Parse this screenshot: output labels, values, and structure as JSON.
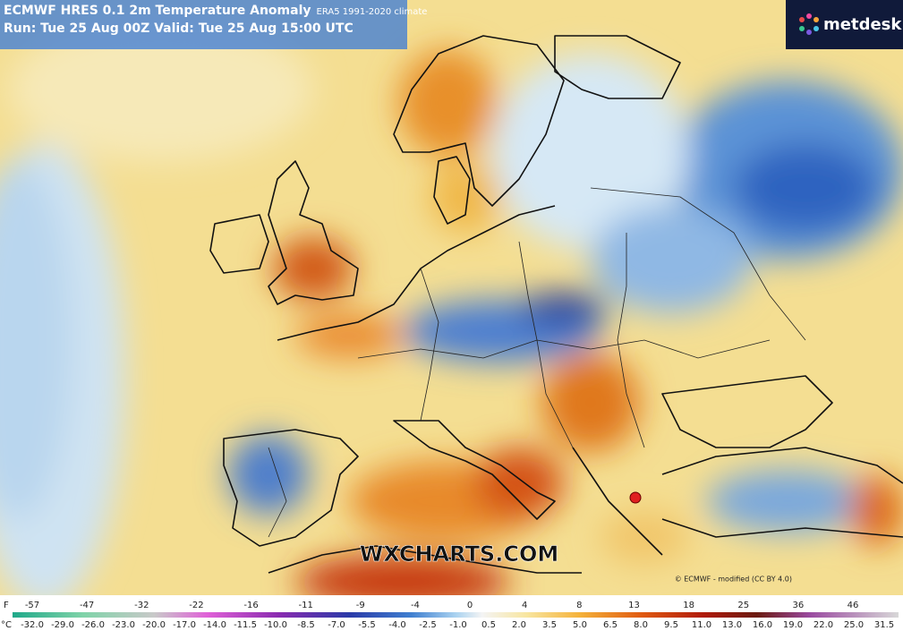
{
  "header": {
    "title": "ECMWF HRES 0.1 2m Temperature Anomaly",
    "climate": "ERA5 1991-2020 climate",
    "run": "Run: Tue 25 Aug 00Z Valid: Tue 25 Aug 15:00 UTC"
  },
  "logo": "metdesk",
  "watermark": "WXCHARTS.COM",
  "credit": "© ECMWF - modified (CC BY 4.0)",
  "colorbar": {
    "f_unit": "F",
    "f_labels": [
      "-57",
      "-47",
      "-32",
      "-22",
      "-16",
      "-11",
      "-9",
      "-4",
      "0",
      "4",
      "8",
      "13",
      "18",
      "25",
      "36",
      "46"
    ],
    "c_unit": "°C",
    "c_labels": [
      "-32.0",
      "-29.0",
      "-26.0",
      "-23.0",
      "-20.0",
      "-17.0",
      "-14.0",
      "-11.5",
      "-10.0",
      "-8.5",
      "-7.0",
      "-5.5",
      "-4.0",
      "-2.5",
      "-1.0",
      "0.5",
      "2.0",
      "3.5",
      "5.0",
      "6.5",
      "8.0",
      "9.5",
      "11.0",
      "13.0",
      "16.0",
      "19.0",
      "22.0",
      "25.0",
      "31.5"
    ]
  }
}
